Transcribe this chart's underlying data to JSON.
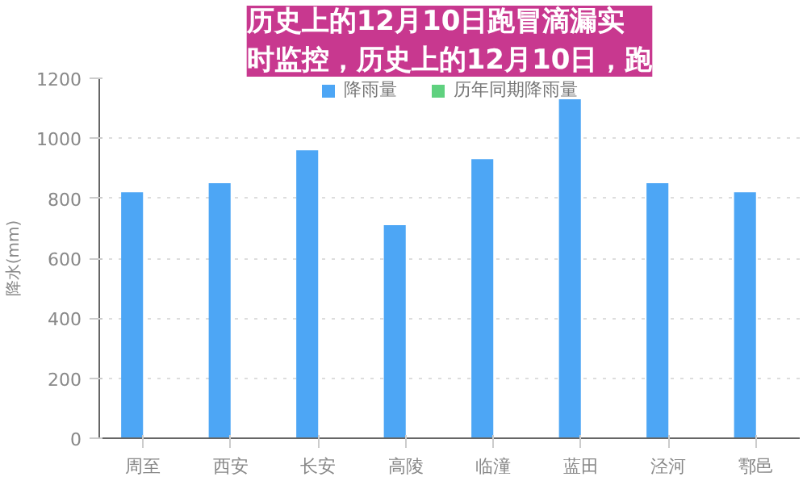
{
  "chart_data": {
    "type": "bar",
    "title": "历史上的12月10日跑冒滴漏实时监控，历史上的12月10日，跑",
    "ylabel": "降水(mm)",
    "categories": [
      "周至",
      "西安",
      "长安",
      "高陵",
      "临潼",
      "蓝田",
      "泾河",
      "鄠邑"
    ],
    "series": [
      {
        "name": "降雨量",
        "color": "#4da6f5",
        "values": [
          820,
          850,
          960,
          710,
          930,
          1130,
          850,
          820
        ]
      },
      {
        "name": "历年同期降雨量",
        "color": "#5fd17f",
        "values": [
          null,
          null,
          null,
          null,
          null,
          null,
          null,
          null
        ]
      }
    ],
    "ylim": [
      0,
      1200
    ],
    "yticks": [
      0,
      200,
      400,
      600,
      800,
      1000,
      1200
    ],
    "grid": "y",
    "legend": "top"
  }
}
